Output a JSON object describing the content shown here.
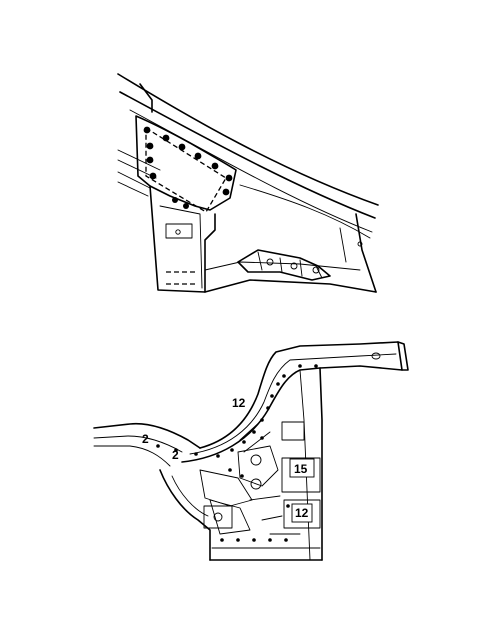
{
  "figures": [
    {
      "callouts": []
    },
    {
      "callouts": [
        "12",
        "2",
        "2",
        "15",
        "12"
      ]
    }
  ]
}
